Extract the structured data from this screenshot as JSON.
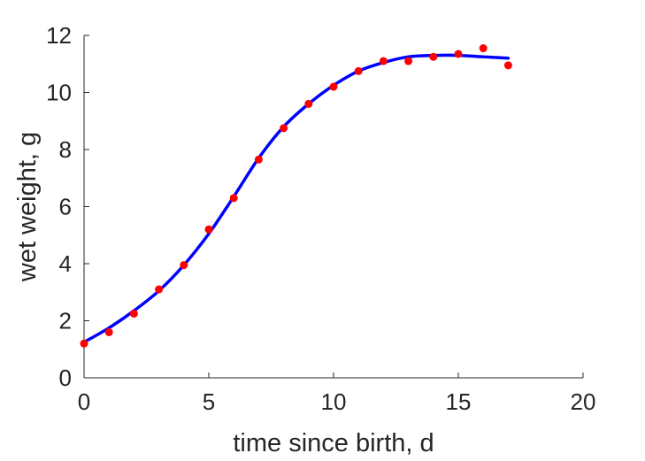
{
  "chart_data": {
    "type": "scatter",
    "title": "",
    "xlabel": "time since birth, d",
    "ylabel": "wet weight, g",
    "xlim": [
      0,
      20
    ],
    "ylim": [
      0,
      12
    ],
    "xticks": [
      "0",
      "5",
      "10",
      "15",
      "20"
    ],
    "yticks": [
      "0",
      "2",
      "4",
      "6",
      "8",
      "10",
      "12"
    ],
    "grid": false,
    "series": [
      {
        "kind": "points",
        "color": "#ff0000",
        "x": [
          0,
          1,
          2,
          3,
          4,
          5,
          6,
          7,
          8,
          9,
          10,
          11,
          12,
          13,
          14,
          15,
          16,
          17
        ],
        "y": [
          1.2,
          1.6,
          2.25,
          3.1,
          3.95,
          5.2,
          6.3,
          7.65,
          8.75,
          9.6,
          10.2,
          10.75,
          11.1,
          11.1,
          11.25,
          11.35,
          11.55,
          10.95
        ]
      },
      {
        "kind": "line",
        "color": "#0000ff",
        "x": [
          0,
          1,
          2,
          3,
          4,
          5,
          6,
          7,
          8,
          9,
          10,
          11,
          12,
          13,
          14,
          15,
          16,
          17
        ],
        "y": [
          1.25,
          1.75,
          2.35,
          3.05,
          3.95,
          5.05,
          6.35,
          7.7,
          8.8,
          9.6,
          10.25,
          10.75,
          11.05,
          11.25,
          11.3,
          11.3,
          11.25,
          11.2
        ]
      }
    ]
  }
}
